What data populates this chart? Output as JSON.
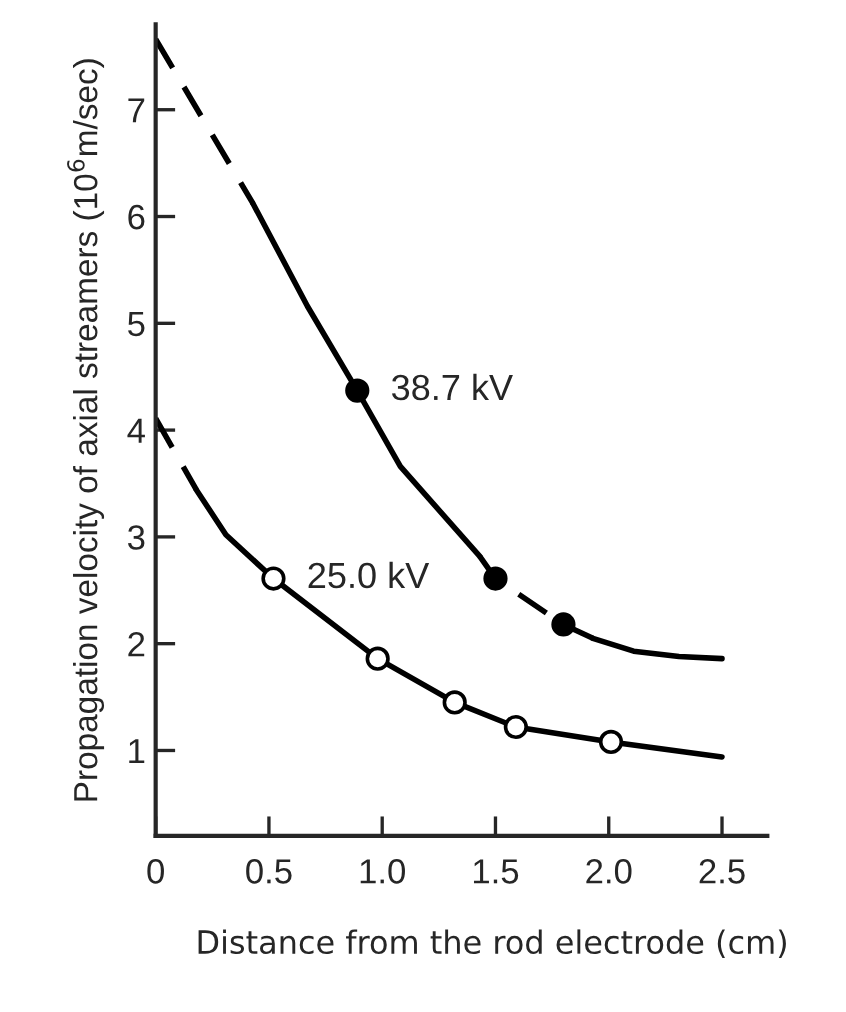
{
  "chart_data": {
    "type": "line",
    "xlabel": "Distance from the rod electrode (cm)",
    "ylabel": "Propagation velocity of axial streamers (10$^{6}$m/sec)",
    "xlim": [
      0,
      2.7
    ],
    "ylim": [
      0.2,
      7.8
    ],
    "xticks": [
      0,
      0.5,
      {
        "value": 1,
        "label": "1.0"
      },
      1.5,
      {
        "value": 2,
        "label": "2.0"
      },
      2.5
    ],
    "yticks": [
      1,
      2,
      3,
      4,
      5,
      6,
      7
    ],
    "grid": false,
    "series": [
      {
        "color": "#000000",
        "line_style": "dashed",
        "marker": "none",
        "x": [
          0,
          0.43
        ],
        "values": [
          7.66,
          6.12
        ]
      },
      {
        "color": "#000000",
        "line_style": "solid",
        "marker": "none",
        "x": [
          0.43,
          0.67,
          0.89,
          1.08,
          1.43
        ],
        "values": [
          6.12,
          5.16,
          4.37,
          3.66,
          2.82
        ]
      },
      {
        "color": "#000000",
        "line_style": "dashed",
        "marker": "none",
        "x": [
          1.43,
          1.5,
          1.8,
          1.93
        ],
        "values": [
          2.82,
          2.61,
          2.18,
          2.05
        ]
      },
      {
        "color": "#000000",
        "line_style": "solid",
        "marker": "none",
        "x": [
          1.93,
          2.11,
          2.31,
          2.5
        ],
        "values": [
          2.05,
          1.93,
          1.88,
          1.86
        ]
      },
      {
        "type": "scatter",
        "color": "#000000",
        "marker": "circle",
        "x": [
          0.89,
          1.5,
          1.8
        ],
        "values": [
          4.37,
          2.61,
          2.18
        ]
      },
      {
        "color": "#000000",
        "line_style": "dashed",
        "marker": "none",
        "x": [
          0,
          0.18
        ],
        "values": [
          4.11,
          3.44
        ]
      },
      {
        "color": "#000000",
        "line_style": "solid",
        "marker": "none",
        "x": [
          0.18,
          0.31,
          0.52,
          0.98,
          1.32,
          1.59,
          2.01,
          2.5
        ],
        "values": [
          3.44,
          3.02,
          2.61,
          1.86,
          1.45,
          1.22,
          1.08,
          0.94
        ]
      },
      {
        "type": "scatter",
        "color": "#ffffff",
        "marker": "circle",
        "x": [
          0.52,
          0.98,
          1.32,
          1.59,
          2.01
        ],
        "values": [
          2.61,
          1.86,
          1.45,
          1.22,
          1.08
        ]
      }
    ],
    "annotations": [
      {
        "text": "38.7 kV",
        "x": 0.89,
        "y": 4.37
      },
      {
        "text": "25.0 kV",
        "x": 0.52,
        "y": 2.61
      }
    ]
  }
}
